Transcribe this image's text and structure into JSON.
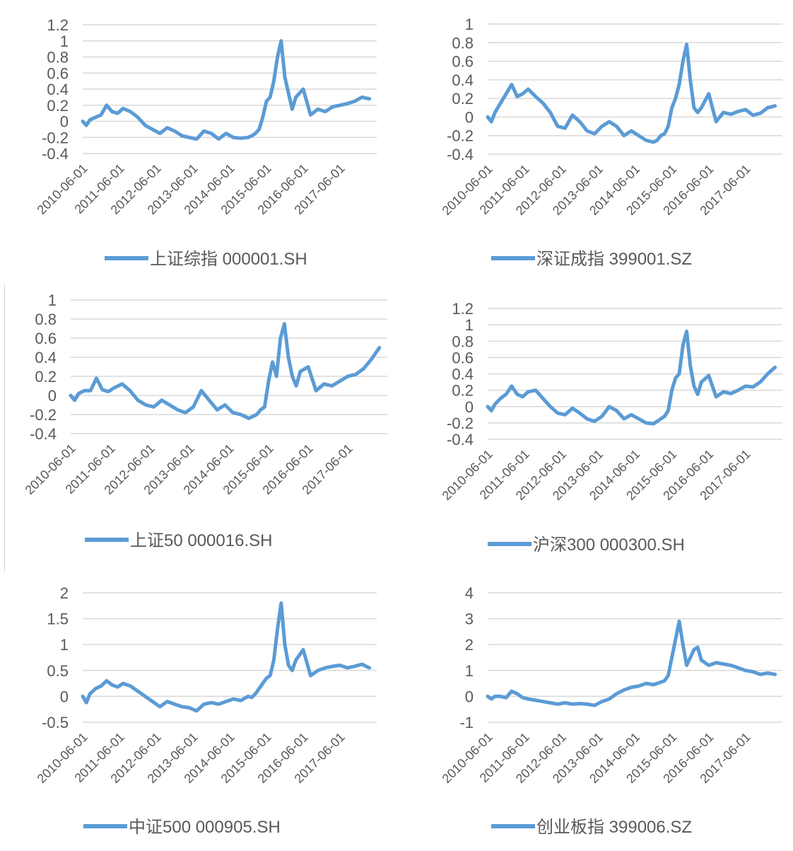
{
  "theme": {
    "line_color": "#5b9bd5",
    "grid_color": "#d9d9d9",
    "text_color": "#595959"
  },
  "x_ticks": [
    "2010-06-01",
    "2011-06-01",
    "2012-06-01",
    "2013-06-01",
    "2014-06-01",
    "2015-06-01",
    "2016-06-01",
    "2017-06-01"
  ],
  "chart_data": [
    {
      "type": "line",
      "legend": "上证综指 000001.SH",
      "ylim": [
        -0.4,
        1.2
      ],
      "yticks": [
        "1.2",
        "1",
        "0.8",
        "0.6",
        "0.4",
        "0.2",
        "0",
        "-0.2",
        "-0.4"
      ],
      "x": [
        0,
        0.1,
        0.2,
        0.35,
        0.5,
        0.65,
        0.8,
        0.95,
        1.1,
        1.3,
        1.5,
        1.7,
        1.9,
        2.1,
        2.3,
        2.5,
        2.7,
        2.9,
        3.1,
        3.3,
        3.5,
        3.7,
        3.9,
        4.1,
        4.3,
        4.5,
        4.6,
        4.7,
        4.8,
        4.9,
        5.0,
        5.1,
        5.2,
        5.3,
        5.4,
        5.5,
        5.6,
        5.7,
        5.8,
        6.0,
        6.2,
        6.4,
        6.6,
        6.8,
        7.0,
        7.2,
        7.4,
        7.6,
        7.8
      ],
      "values": [
        0,
        -0.05,
        0.02,
        0.05,
        0.08,
        0.2,
        0.12,
        0.1,
        0.16,
        0.12,
        0.05,
        -0.05,
        -0.1,
        -0.15,
        -0.08,
        -0.12,
        -0.18,
        -0.2,
        -0.22,
        -0.12,
        -0.15,
        -0.22,
        -0.15,
        -0.2,
        -0.21,
        -0.2,
        -0.18,
        -0.15,
        -0.1,
        0.05,
        0.25,
        0.3,
        0.5,
        0.8,
        1.0,
        0.55,
        0.35,
        0.15,
        0.3,
        0.4,
        0.08,
        0.15,
        0.12,
        0.18,
        0.2,
        0.22,
        0.25,
        0.3,
        0.28
      ]
    },
    {
      "type": "line",
      "legend": "深证成指 399001.SZ",
      "ylim": [
        -0.4,
        1
      ],
      "yticks": [
        "1",
        "0.8",
        "0.6",
        "0.4",
        "0.2",
        "0",
        "-0.2",
        "-0.4"
      ],
      "x": [
        0,
        0.1,
        0.2,
        0.35,
        0.5,
        0.65,
        0.8,
        0.95,
        1.1,
        1.3,
        1.5,
        1.7,
        1.9,
        2.1,
        2.3,
        2.5,
        2.7,
        2.9,
        3.1,
        3.3,
        3.5,
        3.7,
        3.9,
        4.1,
        4.3,
        4.5,
        4.6,
        4.7,
        4.8,
        4.9,
        5.0,
        5.1,
        5.2,
        5.3,
        5.4,
        5.5,
        5.6,
        5.7,
        5.8,
        6.0,
        6.2,
        6.4,
        6.6,
        6.8,
        7.0,
        7.2,
        7.4,
        7.6,
        7.8
      ],
      "values": [
        0,
        -0.05,
        0.05,
        0.15,
        0.25,
        0.35,
        0.22,
        0.25,
        0.3,
        0.22,
        0.15,
        0.05,
        -0.1,
        -0.12,
        0.02,
        -0.05,
        -0.15,
        -0.18,
        -0.1,
        -0.05,
        -0.1,
        -0.2,
        -0.15,
        -0.2,
        -0.25,
        -0.27,
        -0.25,
        -0.2,
        -0.18,
        -0.1,
        0.1,
        0.2,
        0.35,
        0.6,
        0.78,
        0.4,
        0.1,
        0.05,
        0.1,
        0.25,
        -0.05,
        0.05,
        0.03,
        0.06,
        0.08,
        0.02,
        0.04,
        0.1,
        0.12
      ]
    },
    {
      "type": "line",
      "legend": "上证50 000016.SH",
      "ylim": [
        -0.4,
        1
      ],
      "yticks": [
        "1",
        "0.8",
        "0.6",
        "0.4",
        "0.2",
        "0",
        "-0.2",
        "-0.4"
      ],
      "x": [
        0,
        0.1,
        0.2,
        0.35,
        0.5,
        0.65,
        0.8,
        0.95,
        1.1,
        1.3,
        1.5,
        1.7,
        1.9,
        2.1,
        2.3,
        2.5,
        2.7,
        2.9,
        3.1,
        3.3,
        3.5,
        3.7,
        3.9,
        4.1,
        4.3,
        4.5,
        4.6,
        4.7,
        4.8,
        4.9,
        5.0,
        5.1,
        5.2,
        5.3,
        5.4,
        5.5,
        5.6,
        5.7,
        5.8,
        6.0,
        6.2,
        6.4,
        6.6,
        6.8,
        7.0,
        7.2,
        7.4,
        7.6,
        7.8
      ],
      "values": [
        0,
        -0.05,
        0.02,
        0.05,
        0.05,
        0.18,
        0.06,
        0.04,
        0.08,
        0.12,
        0.05,
        -0.05,
        -0.1,
        -0.12,
        -0.05,
        -0.1,
        -0.15,
        -0.18,
        -0.12,
        0.05,
        -0.05,
        -0.15,
        -0.1,
        -0.18,
        -0.2,
        -0.24,
        -0.22,
        -0.2,
        -0.15,
        -0.12,
        0.15,
        0.35,
        0.2,
        0.6,
        0.75,
        0.4,
        0.2,
        0.1,
        0.25,
        0.3,
        0.05,
        0.12,
        0.1,
        0.15,
        0.2,
        0.22,
        0.28,
        0.38,
        0.5
      ]
    },
    {
      "type": "line",
      "legend": "沪深300 000300.SH",
      "ylim": [
        -0.4,
        1.2
      ],
      "yticks": [
        "1.2",
        "1",
        "0.8",
        "0.6",
        "0.4",
        "0.2",
        "0",
        "-0.2",
        "-0.4"
      ],
      "x": [
        0,
        0.1,
        0.2,
        0.35,
        0.5,
        0.65,
        0.8,
        0.95,
        1.1,
        1.3,
        1.5,
        1.7,
        1.9,
        2.1,
        2.3,
        2.5,
        2.7,
        2.9,
        3.1,
        3.3,
        3.5,
        3.7,
        3.9,
        4.1,
        4.3,
        4.5,
        4.6,
        4.7,
        4.8,
        4.9,
        5.0,
        5.1,
        5.2,
        5.3,
        5.4,
        5.5,
        5.6,
        5.7,
        5.8,
        6.0,
        6.2,
        6.4,
        6.6,
        6.8,
        7.0,
        7.2,
        7.4,
        7.6,
        7.8
      ],
      "values": [
        0,
        -0.05,
        0.03,
        0.1,
        0.15,
        0.25,
        0.15,
        0.12,
        0.18,
        0.2,
        0.1,
        0,
        -0.08,
        -0.1,
        -0.02,
        -0.08,
        -0.15,
        -0.18,
        -0.12,
        0,
        -0.05,
        -0.15,
        -0.1,
        -0.15,
        -0.2,
        -0.21,
        -0.18,
        -0.15,
        -0.12,
        -0.05,
        0.2,
        0.35,
        0.4,
        0.75,
        0.92,
        0.5,
        0.25,
        0.15,
        0.3,
        0.38,
        0.12,
        0.18,
        0.16,
        0.2,
        0.25,
        0.24,
        0.3,
        0.4,
        0.48
      ]
    },
    {
      "type": "line",
      "legend": "中证500 000905.SH",
      "ylim": [
        -0.5,
        2
      ],
      "yticks": [
        "2",
        "1.5",
        "1",
        "0.5",
        "0",
        "-0.5"
      ],
      "x": [
        0,
        0.1,
        0.2,
        0.35,
        0.5,
        0.65,
        0.8,
        0.95,
        1.1,
        1.3,
        1.5,
        1.7,
        1.9,
        2.1,
        2.3,
        2.5,
        2.7,
        2.9,
        3.1,
        3.3,
        3.5,
        3.7,
        3.9,
        4.1,
        4.3,
        4.5,
        4.6,
        4.7,
        4.8,
        4.9,
        5.0,
        5.1,
        5.2,
        5.3,
        5.4,
        5.5,
        5.6,
        5.7,
        5.8,
        6.0,
        6.2,
        6.4,
        6.6,
        6.8,
        7.0,
        7.2,
        7.4,
        7.6,
        7.8
      ],
      "values": [
        0,
        -0.12,
        0.05,
        0.15,
        0.2,
        0.3,
        0.22,
        0.18,
        0.25,
        0.2,
        0.1,
        0,
        -0.1,
        -0.2,
        -0.1,
        -0.15,
        -0.2,
        -0.22,
        -0.28,
        -0.15,
        -0.12,
        -0.15,
        -0.1,
        -0.05,
        -0.08,
        0,
        -0.02,
        0.05,
        0.15,
        0.25,
        0.35,
        0.4,
        0.7,
        1.3,
        1.8,
        1.0,
        0.6,
        0.5,
        0.7,
        0.9,
        0.4,
        0.5,
        0.55,
        0.58,
        0.6,
        0.55,
        0.58,
        0.62,
        0.55
      ]
    },
    {
      "type": "line",
      "legend": "创业板指 399006.SZ",
      "ylim": [
        -1,
        4
      ],
      "yticks": [
        "4",
        "3",
        "2",
        "1",
        "0",
        "-1"
      ],
      "x": [
        0,
        0.1,
        0.2,
        0.35,
        0.5,
        0.65,
        0.8,
        0.95,
        1.1,
        1.3,
        1.5,
        1.7,
        1.9,
        2.1,
        2.3,
        2.5,
        2.7,
        2.9,
        3.1,
        3.3,
        3.5,
        3.7,
        3.9,
        4.1,
        4.3,
        4.5,
        4.6,
        4.7,
        4.8,
        4.9,
        5.0,
        5.1,
        5.2,
        5.3,
        5.4,
        5.5,
        5.6,
        5.7,
        5.8,
        6.0,
        6.2,
        6.4,
        6.6,
        6.8,
        7.0,
        7.2,
        7.4,
        7.6,
        7.8
      ],
      "values": [
        0,
        -0.1,
        0,
        0,
        -0.05,
        0.2,
        0.1,
        -0.05,
        -0.1,
        -0.15,
        -0.2,
        -0.25,
        -0.3,
        -0.25,
        -0.3,
        -0.28,
        -0.3,
        -0.35,
        -0.2,
        -0.1,
        0.1,
        0.25,
        0.35,
        0.4,
        0.5,
        0.45,
        0.5,
        0.55,
        0.6,
        0.8,
        1.5,
        2.2,
        2.9,
        2.0,
        1.2,
        1.5,
        1.8,
        1.9,
        1.4,
        1.2,
        1.3,
        1.25,
        1.2,
        1.1,
        1.0,
        0.95,
        0.85,
        0.9,
        0.85
      ]
    }
  ]
}
